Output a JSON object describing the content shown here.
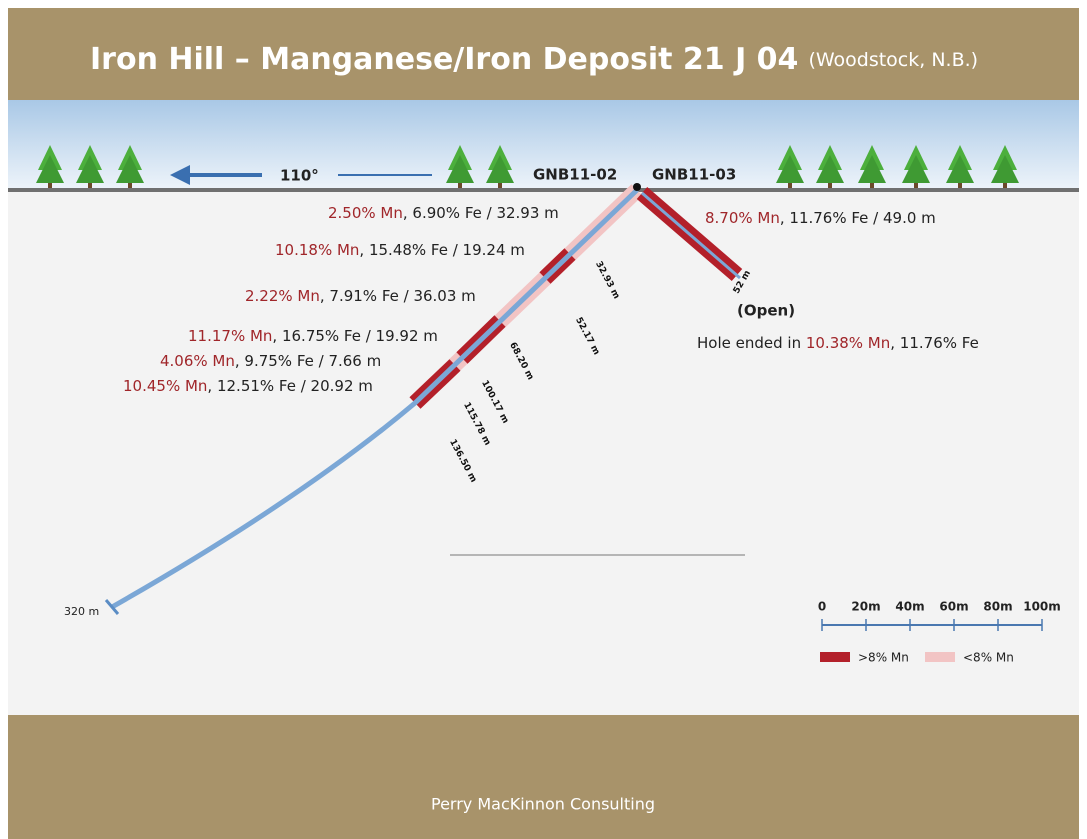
{
  "header": {
    "title": "Iron Hill – Manganese/Iron Deposit 21 J 04",
    "subtitle": "(Woodstock, N.B.)"
  },
  "bearing": "110°",
  "holes": [
    {
      "label": "GNB11-02",
      "intervals": [
        {
          "mn": "2.50% Mn",
          "rest": ", 6.90% Fe / 32.93 m"
        },
        {
          "mn": "10.18% Mn",
          "rest": ", 15.48% Fe / 19.24 m"
        },
        {
          "mn": "2.22% Mn",
          "rest": ", 7.91% Fe / 36.03 m"
        },
        {
          "mn": "11.17% Mn",
          "rest": ", 16.75% Fe / 19.92 m"
        },
        {
          "mn": "4.06% Mn",
          "rest": ", 9.75% Fe / 7.66 m"
        },
        {
          "mn": "10.45% Mn",
          "rest": ", 12.51% Fe / 20.92 m"
        }
      ],
      "depths": [
        "32.93 m",
        "52.17 m",
        "68.20 m",
        "100.17 m",
        "115.78 m",
        "136.50 m"
      ],
      "end_depth": "320 m"
    },
    {
      "label": "GNB11-03",
      "intervals": [
        {
          "mn": "8.70% Mn",
          "rest": ", 11.76% Fe / 49.0 m"
        }
      ],
      "depths": [
        "52 m"
      ],
      "status": "(Open)",
      "note": {
        "prefix": "Hole ended in ",
        "mn": "10.38% Mn",
        "rest": ", 11.76% Fe"
      }
    }
  ],
  "scale": {
    "ticks": [
      "0",
      "20m",
      "40m",
      "60m",
      "80m",
      "100m"
    ]
  },
  "legend": [
    {
      "label": ">8% Mn"
    },
    {
      "label": "<8% Mn"
    }
  ],
  "footer": "Perry MacKinnon Consulting"
}
